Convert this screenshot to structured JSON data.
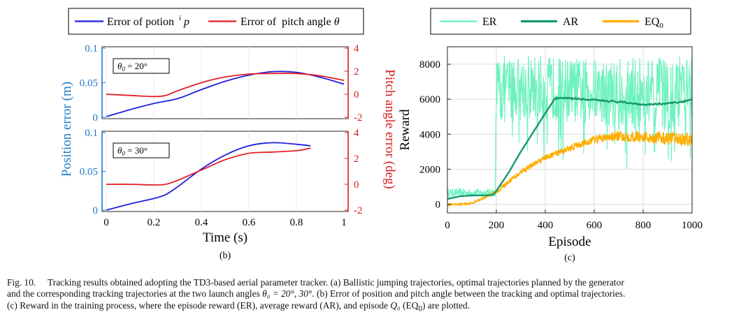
{
  "panel_b": {
    "legend": {
      "position_label": "Error of potion",
      "position_sym_sup": "i",
      "position_sym": "p",
      "pitch_label": "Error of  pitch angle",
      "pitch_sym": "θ"
    },
    "y_left_label": "Position error (m)",
    "y_right_label": "Pitch angle error (deg)",
    "x_label": "Time (s)",
    "panel_label": "(b)",
    "x_ticks": [
      "0",
      "0.2",
      "0.4",
      "0.6",
      "0.8",
      "1"
    ],
    "left_ticks": [
      "0",
      "0.05",
      "0.1"
    ],
    "right_ticks": [
      "-2",
      "0",
      "2",
      "4"
    ],
    "box_top": {
      "sym": "θ",
      "sub": "0",
      "text": " = 20°"
    },
    "box_bottom": {
      "sym": "θ",
      "sub": "0",
      "text": " = 30°"
    }
  },
  "panel_c": {
    "legend": {
      "er": "ER",
      "ar": "AR",
      "eq": "EQ",
      "eq_sub": "0"
    },
    "y_label": "Reward",
    "x_label": "Episode",
    "panel_label": "(c)",
    "x_ticks": [
      "0",
      "200",
      "400",
      "600",
      "800",
      "1000"
    ],
    "y_ticks": [
      "0",
      "2000",
      "4000",
      "6000",
      "8000"
    ]
  },
  "caption": {
    "prefix": "Fig. 10.",
    "line1": "Tracking results obtained adopting the TD3-based aerial parameter tracker. (a) Ballistic jumping trajectories, optimal trajectories planned by the generator",
    "line2_a": "and the corresponding tracking trajectories at the two launch angles ",
    "line2_math": "θ₀ = 20°, 30°",
    "line2_b": ". (b) Error of position and pitch angle between the tracking and optimal trajectories.",
    "line3_a": "(c) Reward in the training process, where the episode reward (ER), average reward (AR), and episode ",
    "line3_math": "Q₀",
    "line3_b": " (EQ",
    "line3_sub": "0",
    "line3_c": ") are plotted."
  },
  "colors": {
    "position": "#1f1fe0",
    "pitch": "#e01f26",
    "left_axis": "#1e78c8",
    "right_axis": "#d81e1e",
    "er": "#6ff2c0",
    "ar": "#14996a",
    "eq": "#ffae00"
  },
  "chart_data": [
    {
      "type": "line",
      "subplot": "top",
      "xlabel": "Time (s)",
      "ylabel": "Position error (m)",
      "y2label": "Pitch angle error (deg)",
      "xlim": [
        0,
        1
      ],
      "ylim": [
        0,
        0.1
      ],
      "y2lim": [
        -2,
        4
      ],
      "series": [
        {
          "name": "Error of potion ip",
          "axis": "left",
          "x": [
            0,
            0.1,
            0.2,
            0.3,
            0.4,
            0.5,
            0.6,
            0.7,
            0.8,
            0.9,
            1.0
          ],
          "y": [
            0.001,
            0.011,
            0.02,
            0.027,
            0.04,
            0.052,
            0.061,
            0.066,
            0.065,
            0.058,
            0.048
          ]
        },
        {
          "name": "Error of pitch angle θ",
          "axis": "right",
          "x": [
            0,
            0.1,
            0.2,
            0.25,
            0.3,
            0.4,
            0.5,
            0.6,
            0.7,
            0.8,
            0.9,
            1.0
          ],
          "y": [
            0.0,
            -0.1,
            -0.2,
            -0.1,
            0.3,
            1.0,
            1.5,
            1.75,
            1.8,
            1.8,
            1.6,
            1.2
          ]
        }
      ]
    },
    {
      "type": "line",
      "subplot": "bottom",
      "xlabel": "Time (s)",
      "ylabel": "Position error (m)",
      "y2label": "Pitch angle error (deg)",
      "xlim": [
        0,
        1
      ],
      "ylim": [
        0,
        0.1
      ],
      "y2lim": [
        -2,
        4
      ],
      "series": [
        {
          "name": "Error of potion ip",
          "axis": "left",
          "x": [
            0,
            0.1,
            0.2,
            0.25,
            0.3,
            0.4,
            0.5,
            0.6,
            0.7,
            0.8,
            0.86
          ],
          "y": [
            0.0,
            0.008,
            0.015,
            0.02,
            0.03,
            0.053,
            0.071,
            0.083,
            0.087,
            0.085,
            0.083
          ]
        },
        {
          "name": "Error of pitch angle θ",
          "axis": "right",
          "x": [
            0,
            0.1,
            0.2,
            0.25,
            0.3,
            0.4,
            0.5,
            0.6,
            0.7,
            0.8,
            0.86
          ],
          "y": [
            0.0,
            0.0,
            -0.05,
            0.0,
            0.3,
            1.1,
            1.9,
            2.4,
            2.5,
            2.6,
            2.8
          ]
        }
      ]
    },
    {
      "type": "line",
      "subplot": "reward",
      "xlabel": "Episode",
      "ylabel": "Reward",
      "xlim": [
        0,
        1000
      ],
      "ylim": [
        -500,
        9000
      ],
      "grid": true,
      "legend_position": "top",
      "series": [
        {
          "name": "ER",
          "band": true,
          "x": [
            0,
            195,
            200,
            300,
            400,
            500,
            600,
            700,
            800,
            900,
            1000
          ],
          "y_low": [
            400,
            400,
            4500,
            4800,
            4800,
            4700,
            4600,
            4400,
            4200,
            4300,
            4400
          ],
          "y_high": [
            900,
            900,
            8500,
            8500,
            8500,
            8400,
            8300,
            8300,
            8500,
            8400,
            8500
          ]
        },
        {
          "name": "AR",
          "x": [
            0,
            50,
            100,
            150,
            190,
            250,
            300,
            350,
            400,
            440,
            500,
            600,
            700,
            800,
            900,
            1000
          ],
          "y": [
            300,
            450,
            500,
            500,
            550,
            1800,
            3000,
            4100,
            5200,
            6050,
            6050,
            5950,
            5850,
            5700,
            5750,
            5950
          ]
        },
        {
          "name": "EQ0",
          "band": true,
          "x": [
            0,
            100,
            150,
            200,
            300,
            400,
            500,
            600,
            700,
            800,
            900,
            1000
          ],
          "y_low": [
            -100,
            0,
            300,
            600,
            1700,
            2500,
            3000,
            3500,
            3600,
            3500,
            3400,
            3300
          ],
          "y_high": [
            0,
            100,
            450,
            800,
            2000,
            2800,
            3400,
            3900,
            4200,
            4200,
            4100,
            4100
          ]
        }
      ]
    }
  ]
}
